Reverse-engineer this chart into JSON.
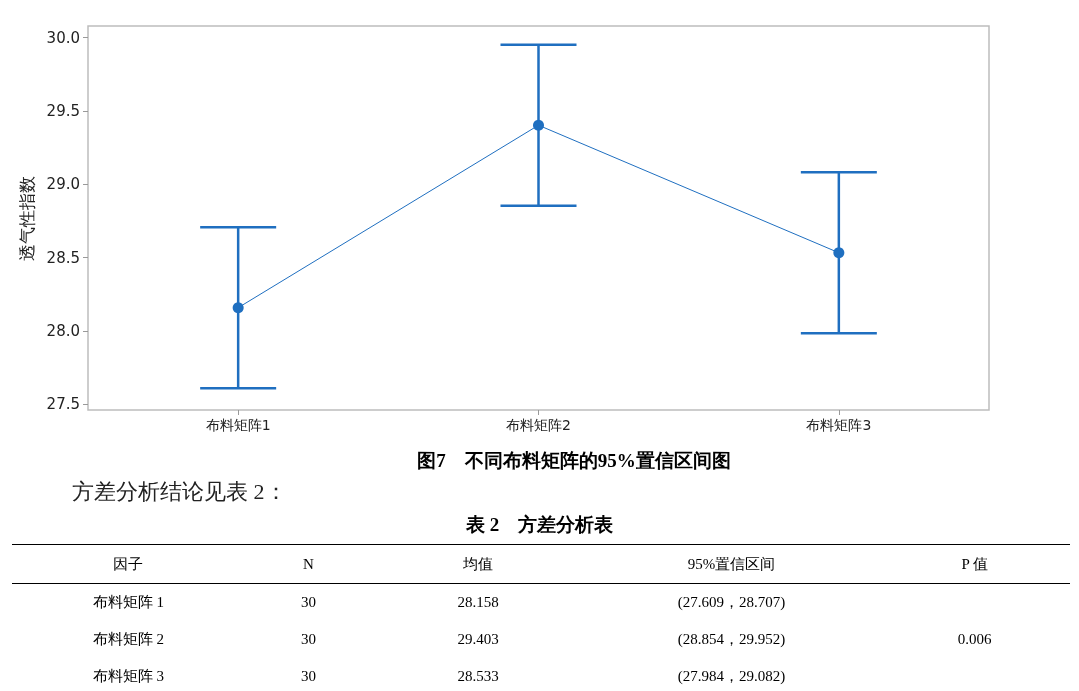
{
  "chart_data": [
    {
      "type": "line",
      "title": "图7　不同布料矩阵的95%置信区间图",
      "ylabel": "透气性指数",
      "categories": [
        "布料矩阵1",
        "布料矩阵2",
        "布料矩阵3"
      ],
      "color": "#1f6fc0",
      "values": [
        28.158,
        29.403,
        28.533
      ],
      "errors": [
        [
          27.609,
          28.707
        ],
        [
          28.854,
          29.952
        ],
        [
          27.984,
          29.082
        ]
      ],
      "ylim": [
        27.46,
        30.08
      ],
      "yticks": [
        27.5,
        {
          "value": 28,
          "label": "28.0"
        },
        28.5,
        {
          "value": 29,
          "label": "29.0"
        },
        29.5,
        {
          "value": 30,
          "label": "30.0"
        }
      ],
      "marker": "circle",
      "line_style": "solid",
      "grid": false,
      "annotations": [
        "方差分析结论见表 2："
      ]
    },
    {
      "type": "other",
      "title": "表 2　方差分析表",
      "categories": [
        "因子",
        "N",
        "均值",
        "95%置信区间",
        "P 值"
      ],
      "cell_labels": [
        [
          "布料矩阵 1",
          "30",
          "28.158",
          "(27.609，28.707)",
          null
        ],
        [
          "布料矩阵 2",
          "30",
          "29.403",
          "(28.854，29.952)",
          "0.006"
        ],
        [
          "布料矩阵 3",
          "30",
          "28.533",
          "(27.984，29.082)",
          null
        ]
      ]
    }
  ]
}
